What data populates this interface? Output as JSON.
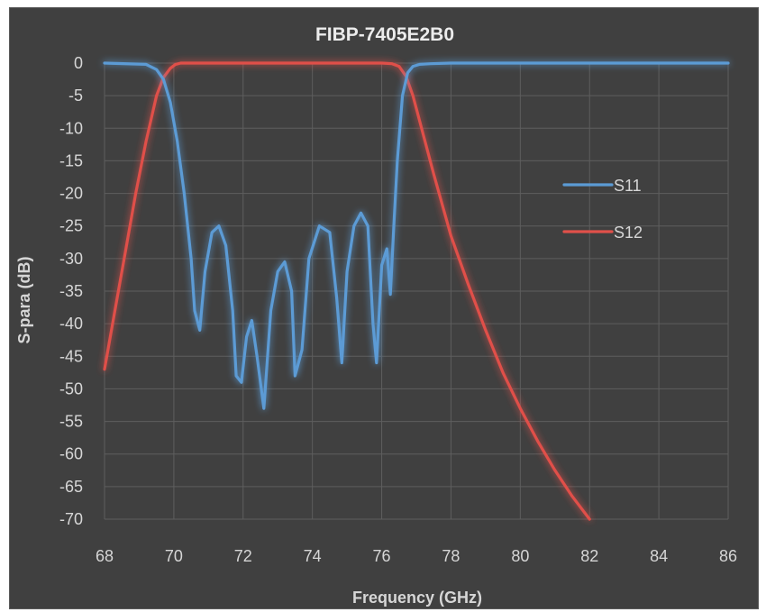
{
  "chart_data": {
    "type": "line",
    "title": "FIBP-7405E2B0",
    "xlabel": "Frequency (GHz)",
    "ylabel": "S-para (dB)",
    "xlim": [
      68,
      86
    ],
    "ylim": [
      -70,
      0
    ],
    "xticks": [
      68,
      70,
      72,
      74,
      76,
      78,
      80,
      82,
      84,
      86
    ],
    "yticks": [
      0,
      -5,
      -10,
      -15,
      -20,
      -25,
      -30,
      -35,
      -40,
      -45,
      -50,
      -55,
      -60,
      -65,
      -70
    ],
    "grid": true,
    "legend_position": "right",
    "series": [
      {
        "name": "S11",
        "color": "#5b9bd5",
        "x": [
          68,
          69.2,
          69.5,
          69.7,
          69.9,
          70.1,
          70.3,
          70.5,
          70.6,
          70.75,
          70.9,
          71.1,
          71.3,
          71.5,
          71.7,
          71.8,
          71.95,
          72.1,
          72.25,
          72.4,
          72.6,
          72.8,
          73.0,
          73.2,
          73.4,
          73.5,
          73.7,
          73.9,
          74.2,
          74.5,
          74.7,
          74.85,
          75.0,
          75.2,
          75.4,
          75.6,
          75.75,
          75.85,
          76.0,
          76.15,
          76.25,
          76.35,
          76.45,
          76.6,
          76.75,
          76.9,
          77.1,
          77.4,
          78,
          86
        ],
        "y": [
          0,
          -0.2,
          -1,
          -2.5,
          -6,
          -12,
          -20,
          -30,
          -38,
          -41,
          -32,
          -26,
          -25,
          -28,
          -38,
          -48,
          -49,
          -42,
          -39.5,
          -45,
          -53,
          -38,
          -32,
          -30.5,
          -35,
          -48,
          -44,
          -30,
          -25,
          -26,
          -36,
          -46,
          -32,
          -25,
          -23,
          -25,
          -40,
          -46,
          -31,
          -28.5,
          -35.5,
          -25,
          -15,
          -5,
          -1.5,
          -0.5,
          -0.2,
          -0.1,
          0,
          0
        ]
      },
      {
        "name": "S12",
        "color": "#e0504a",
        "x": [
          68,
          68.3,
          68.6,
          68.9,
          69.2,
          69.5,
          69.7,
          69.9,
          70.05,
          70.2,
          70.5,
          71,
          72,
          73,
          74,
          75,
          76,
          76.3,
          76.5,
          76.7,
          76.9,
          77.2,
          77.5,
          78,
          78.5,
          79,
          79.5,
          80,
          80.5,
          81,
          81.5,
          82
        ],
        "y": [
          -47,
          -38,
          -29,
          -20,
          -12,
          -5,
          -2.2,
          -0.8,
          -0.2,
          0,
          0,
          0,
          0,
          0,
          0,
          0,
          0,
          -0.1,
          -0.5,
          -2,
          -5,
          -11,
          -17,
          -26.5,
          -34,
          -41,
          -47.5,
          -53,
          -58,
          -62.5,
          -66.5,
          -70
        ]
      }
    ]
  }
}
